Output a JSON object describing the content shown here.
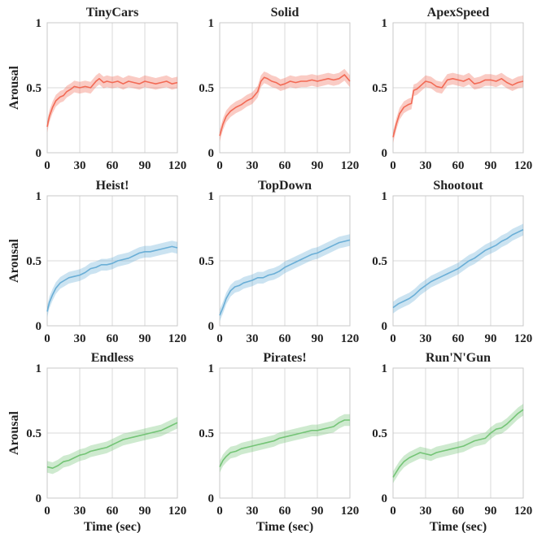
{
  "chart_data": [
    {
      "type": "line",
      "title": "TinyCars",
      "xlabel": "",
      "ylabel": "Arousal",
      "xlim": [
        0,
        120
      ],
      "ylim": [
        0,
        1
      ],
      "xticks": [
        0,
        30,
        60,
        90,
        120
      ],
      "yticks": [
        "0",
        "0.5",
        "1"
      ],
      "grid": true,
      "color": "#f26a55",
      "x": [
        0,
        2,
        5,
        8,
        12,
        15,
        18,
        22,
        25,
        30,
        35,
        40,
        45,
        48,
        52,
        55,
        60,
        65,
        70,
        75,
        80,
        85,
        90,
        95,
        100,
        105,
        110,
        115,
        120
      ],
      "y": [
        0.2,
        0.28,
        0.35,
        0.4,
        0.43,
        0.44,
        0.47,
        0.49,
        0.51,
        0.5,
        0.51,
        0.5,
        0.55,
        0.57,
        0.54,
        0.55,
        0.54,
        0.55,
        0.53,
        0.55,
        0.54,
        0.53,
        0.55,
        0.54,
        0.53,
        0.54,
        0.55,
        0.53,
        0.54
      ]
    },
    {
      "type": "line",
      "title": "Solid",
      "xlabel": "",
      "ylabel": "",
      "xlim": [
        0,
        120
      ],
      "ylim": [
        0,
        1
      ],
      "xticks": [
        0,
        30,
        60,
        90,
        120
      ],
      "yticks": [
        "0",
        "0.5",
        "1"
      ],
      "grid": true,
      "color": "#f26a55",
      "x": [
        0,
        3,
        6,
        10,
        15,
        20,
        25,
        30,
        35,
        38,
        41,
        44,
        48,
        52,
        56,
        60,
        65,
        70,
        75,
        80,
        85,
        90,
        95,
        100,
        105,
        110,
        115,
        120
      ],
      "y": [
        0.13,
        0.22,
        0.28,
        0.32,
        0.35,
        0.37,
        0.4,
        0.42,
        0.47,
        0.55,
        0.58,
        0.57,
        0.55,
        0.54,
        0.52,
        0.53,
        0.55,
        0.54,
        0.55,
        0.55,
        0.56,
        0.55,
        0.56,
        0.57,
        0.56,
        0.57,
        0.6,
        0.55
      ]
    },
    {
      "type": "line",
      "title": "ApexSpeed",
      "xlabel": "",
      "ylabel": "",
      "xlim": [
        0,
        120
      ],
      "ylim": [
        0,
        1
      ],
      "xticks": [
        0,
        30,
        60,
        90,
        120
      ],
      "yticks": [
        "0",
        "0.5",
        "1"
      ],
      "grid": true,
      "color": "#f26a55",
      "x": [
        0,
        3,
        6,
        10,
        14,
        17,
        19,
        22,
        26,
        30,
        35,
        40,
        45,
        50,
        55,
        60,
        65,
        70,
        75,
        80,
        85,
        90,
        95,
        100,
        105,
        110,
        115,
        120
      ],
      "y": [
        0.12,
        0.22,
        0.3,
        0.35,
        0.37,
        0.38,
        0.48,
        0.49,
        0.52,
        0.55,
        0.54,
        0.51,
        0.5,
        0.56,
        0.57,
        0.56,
        0.55,
        0.57,
        0.53,
        0.54,
        0.56,
        0.56,
        0.55,
        0.57,
        0.54,
        0.52,
        0.54,
        0.55
      ]
    },
    {
      "type": "line",
      "title": "Heist!",
      "xlabel": "",
      "ylabel": "Arousal",
      "xlim": [
        0,
        120
      ],
      "ylim": [
        0,
        1
      ],
      "xticks": [
        0,
        30,
        60,
        90,
        120
      ],
      "yticks": [
        "0",
        "0.5",
        "1"
      ],
      "grid": true,
      "color": "#6aaed6",
      "x": [
        0,
        2,
        5,
        8,
        12,
        16,
        20,
        25,
        30,
        35,
        40,
        45,
        50,
        55,
        60,
        65,
        70,
        75,
        80,
        85,
        90,
        95,
        100,
        105,
        110,
        115,
        120
      ],
      "y": [
        0.11,
        0.18,
        0.24,
        0.29,
        0.33,
        0.35,
        0.37,
        0.38,
        0.39,
        0.41,
        0.44,
        0.45,
        0.47,
        0.47,
        0.48,
        0.5,
        0.51,
        0.52,
        0.54,
        0.56,
        0.57,
        0.57,
        0.58,
        0.59,
        0.6,
        0.61,
        0.6
      ]
    },
    {
      "type": "line",
      "title": "TopDown",
      "xlabel": "",
      "ylabel": "",
      "xlim": [
        0,
        120
      ],
      "ylim": [
        0,
        1
      ],
      "xticks": [
        0,
        30,
        60,
        90,
        120
      ],
      "yticks": [
        "0",
        "0.5",
        "1"
      ],
      "grid": true,
      "color": "#6aaed6",
      "x": [
        0,
        3,
        6,
        10,
        14,
        18,
        22,
        26,
        30,
        35,
        40,
        45,
        50,
        55,
        60,
        65,
        70,
        75,
        80,
        85,
        90,
        95,
        100,
        105,
        110,
        115,
        120
      ],
      "y": [
        0.08,
        0.14,
        0.21,
        0.27,
        0.3,
        0.31,
        0.33,
        0.34,
        0.35,
        0.37,
        0.37,
        0.39,
        0.4,
        0.42,
        0.45,
        0.47,
        0.49,
        0.51,
        0.53,
        0.55,
        0.56,
        0.58,
        0.6,
        0.62,
        0.64,
        0.65,
        0.66
      ]
    },
    {
      "type": "line",
      "title": "Shootout",
      "xlabel": "",
      "ylabel": "",
      "xlim": [
        0,
        120
      ],
      "ylim": [
        0,
        1
      ],
      "xticks": [
        0,
        30,
        60,
        90,
        120
      ],
      "yticks": [
        "0",
        "0.5",
        "1"
      ],
      "grid": true,
      "color": "#6aaed6",
      "x": [
        0,
        5,
        10,
        15,
        20,
        25,
        30,
        35,
        40,
        45,
        50,
        55,
        60,
        65,
        70,
        75,
        80,
        85,
        90,
        95,
        100,
        105,
        110,
        115,
        120
      ],
      "y": [
        0.14,
        0.17,
        0.19,
        0.21,
        0.24,
        0.28,
        0.31,
        0.34,
        0.36,
        0.38,
        0.4,
        0.42,
        0.44,
        0.47,
        0.5,
        0.52,
        0.55,
        0.58,
        0.6,
        0.62,
        0.65,
        0.67,
        0.7,
        0.72,
        0.74
      ]
    },
    {
      "type": "line",
      "title": "Endless",
      "xlabel": "Time (sec)",
      "ylabel": "Arousal",
      "xlim": [
        0,
        120
      ],
      "ylim": [
        0,
        1
      ],
      "xticks": [
        0,
        30,
        60,
        90,
        120
      ],
      "yticks": [
        "0",
        "0.5",
        "1"
      ],
      "grid": true,
      "color": "#74c476",
      "x": [
        0,
        5,
        10,
        15,
        20,
        25,
        30,
        35,
        40,
        45,
        50,
        55,
        60,
        65,
        70,
        75,
        80,
        85,
        90,
        95,
        100,
        105,
        110,
        115,
        120
      ],
      "y": [
        0.24,
        0.23,
        0.25,
        0.28,
        0.29,
        0.31,
        0.33,
        0.34,
        0.36,
        0.37,
        0.38,
        0.39,
        0.41,
        0.43,
        0.45,
        0.46,
        0.47,
        0.48,
        0.49,
        0.5,
        0.51,
        0.52,
        0.54,
        0.56,
        0.58
      ]
    },
    {
      "type": "line",
      "title": "Pirates!",
      "xlabel": "Time (sec)",
      "ylabel": "",
      "xlim": [
        0,
        120
      ],
      "ylim": [
        0,
        1
      ],
      "xticks": [
        0,
        30,
        60,
        90,
        120
      ],
      "yticks": [
        "0",
        "0.5",
        "1"
      ],
      "grid": true,
      "color": "#74c476",
      "x": [
        0,
        3,
        6,
        10,
        15,
        20,
        25,
        30,
        35,
        40,
        45,
        50,
        55,
        60,
        65,
        70,
        75,
        80,
        85,
        90,
        95,
        100,
        105,
        110,
        115,
        120
      ],
      "y": [
        0.24,
        0.29,
        0.32,
        0.35,
        0.36,
        0.38,
        0.39,
        0.4,
        0.41,
        0.42,
        0.43,
        0.44,
        0.46,
        0.47,
        0.48,
        0.49,
        0.5,
        0.51,
        0.52,
        0.52,
        0.53,
        0.54,
        0.55,
        0.58,
        0.6,
        0.6
      ]
    },
    {
      "type": "line",
      "title": "Run'N'Gun",
      "xlabel": "Time (sec)",
      "ylabel": "",
      "xlim": [
        0,
        120
      ],
      "ylim": [
        0,
        1
      ],
      "xticks": [
        0,
        30,
        60,
        90,
        120
      ],
      "yticks": [
        "0",
        "0.5",
        "1"
      ],
      "grid": true,
      "color": "#74c476",
      "x": [
        0,
        3,
        6,
        10,
        15,
        20,
        25,
        30,
        35,
        40,
        45,
        50,
        55,
        60,
        65,
        70,
        75,
        80,
        85,
        90,
        95,
        100,
        105,
        110,
        115,
        120
      ],
      "y": [
        0.16,
        0.2,
        0.24,
        0.28,
        0.31,
        0.33,
        0.35,
        0.34,
        0.33,
        0.35,
        0.36,
        0.37,
        0.38,
        0.39,
        0.4,
        0.42,
        0.44,
        0.45,
        0.46,
        0.5,
        0.53,
        0.54,
        0.57,
        0.61,
        0.65,
        0.68
      ]
    }
  ]
}
